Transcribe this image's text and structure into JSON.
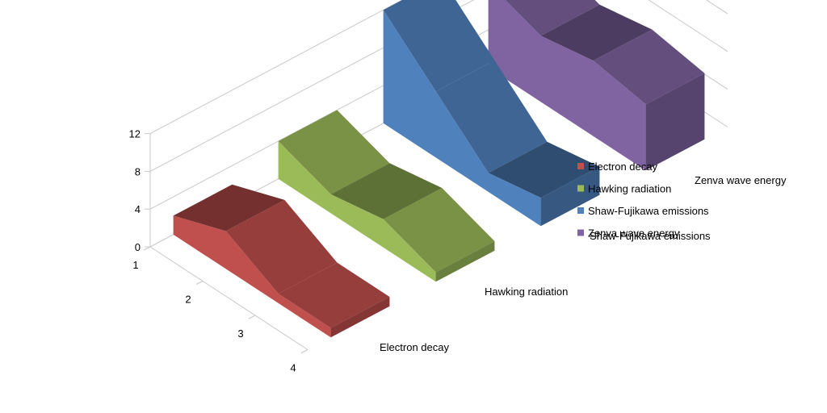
{
  "chart_data": {
    "type": "area",
    "variant": "3d",
    "title": "",
    "xlabel": "",
    "ylabel": "",
    "x": [
      "1",
      "2",
      "3",
      "4"
    ],
    "ylim": [
      0,
      12
    ],
    "yticks": [
      "0",
      "4",
      "8",
      "12"
    ],
    "series": [
      {
        "name": "Electron decay",
        "values": [
          2,
          4,
          1,
          1
        ],
        "color": "#C0504D"
      },
      {
        "name": "Hawking radiation",
        "values": [
          4,
          2,
          3,
          1
        ],
        "color": "#9BBB59"
      },
      {
        "name": "Shaw-Fujikawa emissions",
        "values": [
          12,
          7,
          2,
          3
        ],
        "color": "#4F81BD"
      },
      {
        "name": "Zenva wave energy",
        "values": [
          9,
          7,
          8,
          7
        ],
        "color": "#8064A2"
      }
    ],
    "legend": "right",
    "grid": true
  }
}
